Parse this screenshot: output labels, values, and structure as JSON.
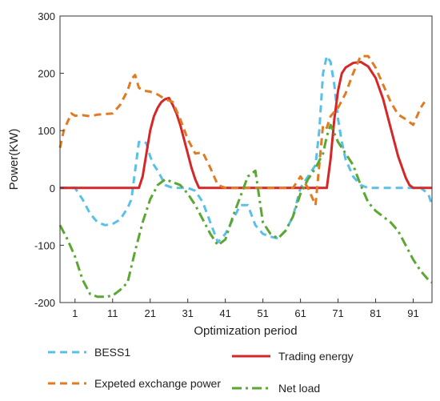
{
  "chart_data": {
    "type": "line",
    "xlabel": "Optimization period",
    "ylabel": "Power(KW)",
    "xlim": [
      -3,
      96
    ],
    "ylim": [
      -200,
      300
    ],
    "xticks": [
      1,
      11,
      21,
      31,
      41,
      51,
      61,
      71,
      81,
      91
    ],
    "yticks": [
      -200,
      -100,
      0,
      100,
      200,
      300
    ],
    "grid": false,
    "legend_position": "bottom",
    "series": [
      {
        "name": "BESS1",
        "color": "#5bc0e8",
        "dash": "dashed",
        "x": [
          -3,
          0,
          1,
          3,
          5,
          7,
          9,
          11,
          13,
          15,
          16,
          17,
          18,
          19,
          20,
          21,
          22,
          23,
          24,
          25,
          27,
          29,
          31,
          33,
          35,
          37,
          39,
          41,
          43,
          45,
          47,
          49,
          51,
          53,
          55,
          57,
          59,
          61,
          63,
          65,
          66,
          67,
          68,
          69,
          70,
          71,
          72,
          73,
          75,
          77,
          79,
          81,
          83,
          85,
          87,
          89,
          91,
          93,
          95,
          96
        ],
        "y": [
          0,
          0,
          0,
          -20,
          -45,
          -60,
          -65,
          -63,
          -55,
          -35,
          -20,
          30,
          80,
          82,
          78,
          55,
          40,
          30,
          18,
          5,
          0,
          0,
          0,
          -5,
          -25,
          -60,
          -95,
          -80,
          -55,
          -30,
          -30,
          -65,
          -80,
          -85,
          -88,
          -75,
          -50,
          0,
          20,
          40,
          100,
          200,
          230,
          220,
          180,
          120,
          80,
          50,
          20,
          5,
          0,
          0,
          0,
          0,
          0,
          0,
          0,
          0,
          -10,
          -30
        ]
      },
      {
        "name": "Trading energy",
        "color": "#d62728",
        "dash": "solid",
        "x": [
          -3,
          18,
          19,
          20,
          21,
          22,
          23,
          24,
          25,
          26,
          27,
          28,
          29,
          30,
          31,
          32,
          33,
          34,
          35,
          36,
          67,
          68,
          69,
          70,
          71,
          72,
          73,
          75,
          77,
          79,
          81,
          83,
          85,
          87,
          89,
          90,
          91,
          92,
          96
        ],
        "y": [
          0,
          0,
          20,
          60,
          100,
          125,
          140,
          150,
          155,
          157,
          145,
          130,
          110,
          85,
          60,
          35,
          15,
          0,
          0,
          0,
          0,
          0,
          50,
          120,
          170,
          200,
          210,
          218,
          220,
          212,
          192,
          155,
          105,
          55,
          18,
          5,
          0,
          0,
          0
        ]
      },
      {
        "name": "Expeted exchange power",
        "color": "#e07b24",
        "dash": "dashed",
        "x": [
          -3,
          -2,
          0,
          1,
          3,
          5,
          7,
          9,
          11,
          13,
          15,
          16,
          17,
          18,
          19,
          21,
          23,
          25,
          27,
          29,
          31,
          33,
          35,
          37,
          39,
          41,
          43,
          45,
          47,
          49,
          51,
          53,
          55,
          57,
          59,
          61,
          63,
          65,
          67,
          68,
          69,
          71,
          73,
          75,
          77,
          79,
          81,
          83,
          85,
          87,
          89,
          91,
          93,
          94
        ],
        "y": [
          70,
          100,
          130,
          126,
          127,
          125,
          128,
          129,
          130,
          145,
          170,
          190,
          197,
          175,
          170,
          168,
          163,
          155,
          150,
          120,
          85,
          60,
          62,
          35,
          5,
          0,
          0,
          0,
          0,
          0,
          0,
          0,
          0,
          0,
          0,
          20,
          0,
          -30,
          110,
          105,
          125,
          140,
          165,
          200,
          230,
          230,
          210,
          180,
          150,
          128,
          120,
          110,
          140,
          150
        ]
      },
      {
        "name": "Net load",
        "color": "#5aa832",
        "dash": "dashdot",
        "x": [
          -3,
          -1,
          1,
          3,
          5,
          7,
          9,
          11,
          13,
          15,
          17,
          19,
          21,
          23,
          25,
          27,
          29,
          31,
          33,
          35,
          37,
          39,
          41,
          43,
          45,
          47,
          49,
          51,
          53,
          55,
          57,
          59,
          61,
          63,
          65,
          67,
          68,
          69,
          71,
          73,
          75,
          77,
          79,
          81,
          83,
          85,
          87,
          89,
          91,
          93,
          95,
          96
        ],
        "y": [
          -65,
          -90,
          -120,
          -160,
          -185,
          -190,
          -190,
          -188,
          -178,
          -165,
          -110,
          -60,
          -20,
          5,
          15,
          10,
          5,
          -10,
          -30,
          -55,
          -80,
          -100,
          -90,
          -50,
          -15,
          20,
          30,
          -60,
          -80,
          -88,
          -75,
          -50,
          -10,
          15,
          35,
          60,
          90,
          110,
          80,
          60,
          40,
          5,
          -25,
          -40,
          -50,
          -60,
          -75,
          -100,
          -125,
          -145,
          -160,
          -165
        ]
      }
    ]
  }
}
